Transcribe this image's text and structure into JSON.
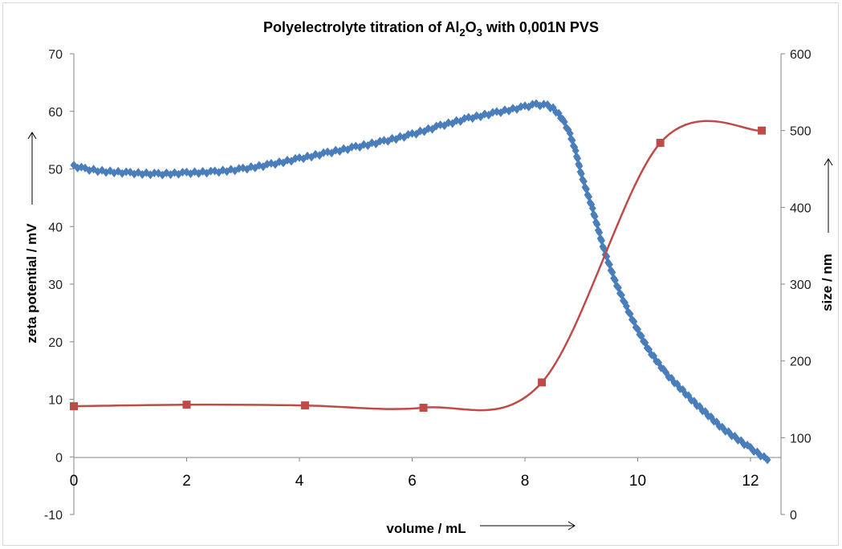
{
  "chart_data": {
    "type": "line",
    "title": {
      "prefix": "Polyelectrolyte titration of Al",
      "sub1": "2",
      "mid": "O",
      "sub2": "3",
      "suffix": " with 0,001N PVS"
    },
    "xlabel": "volume / mL",
    "ylabel_left": "zeta potential / mV",
    "ylabel_right": "size / nm",
    "xlim": [
      0,
      12.5
    ],
    "ylim_left": [
      -10,
      70
    ],
    "ylim_right": [
      0,
      600
    ],
    "x_ticks": [
      "0",
      "2",
      "4",
      "6",
      "8",
      "10",
      "12"
    ],
    "y_left_ticks": [
      "-10",
      "0",
      "10",
      "20",
      "30",
      "40",
      "50",
      "60",
      "70"
    ],
    "y_right_ticks": [
      "0",
      "100",
      "200",
      "300",
      "400",
      "500",
      "600"
    ],
    "grid": false,
    "legend": "none",
    "series": [
      {
        "axis": "left",
        "color": "#4a7ebb",
        "marker": "diamond",
        "x": [
          0,
          0.2,
          0.5,
          1.0,
          1.5,
          2.0,
          2.5,
          3.0,
          3.5,
          4.0,
          4.5,
          5.0,
          5.5,
          6.0,
          6.5,
          7.0,
          7.5,
          8.0,
          8.2,
          8.4,
          8.5,
          8.6,
          8.7,
          8.8,
          8.9,
          9.0,
          9.2,
          9.4,
          9.6,
          9.8,
          10.0,
          10.2,
          10.5,
          11.0,
          11.5,
          12.0,
          12.3
        ],
        "values": [
          50.5,
          50.0,
          49.6,
          49.3,
          49.1,
          49.3,
          49.5,
          50.0,
          50.8,
          51.8,
          52.8,
          53.8,
          54.8,
          56.0,
          57.5,
          58.8,
          59.8,
          60.8,
          61.2,
          61.0,
          60.5,
          59.5,
          58.0,
          56.0,
          53.0,
          49.0,
          43.0,
          36.0,
          30.5,
          26.0,
          22.0,
          18.5,
          14.5,
          9.5,
          5.0,
          1.5,
          -0.5
        ]
      },
      {
        "axis": "right",
        "color": "#be4b48",
        "marker": "square",
        "x": [
          0,
          2.0,
          4.1,
          6.2,
          8.3,
          10.4,
          12.2
        ],
        "values": [
          141,
          143,
          142,
          139,
          172,
          484,
          500
        ]
      }
    ]
  }
}
